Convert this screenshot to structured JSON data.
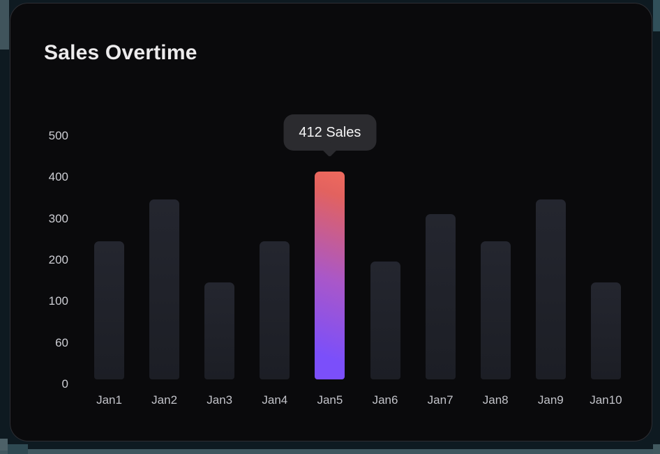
{
  "chart_data": {
    "type": "bar",
    "title": "Sales Overtime",
    "categories": [
      "Jan1",
      "Jan2",
      "Jan3",
      "Jan4",
      "Jan5",
      "Jan6",
      "Jan7",
      "Jan8",
      "Jan9",
      "Jan10"
    ],
    "values": [
      245,
      345,
      145,
      245,
      412,
      195,
      310,
      245,
      345,
      145
    ],
    "y_tick_labels": [
      "500",
      "400",
      "300",
      "200",
      "100",
      "60",
      "0"
    ],
    "xlabel": "",
    "ylabel": "",
    "grid": false,
    "legend": null,
    "highlighted_index": 4,
    "highlighted_label": "412 Sales",
    "colors": {
      "card_bg": "#0a0a0c",
      "bar_top": "#24262f",
      "bar_bottom": "#1c1e25",
      "highlight_gradient": [
        "#ef6a5e",
        "#a957c9",
        "#7b4ffa"
      ],
      "tooltip_bg": "#2b2b2f",
      "title_text": "#ecebec",
      "axis_text": "#cdced4"
    }
  }
}
